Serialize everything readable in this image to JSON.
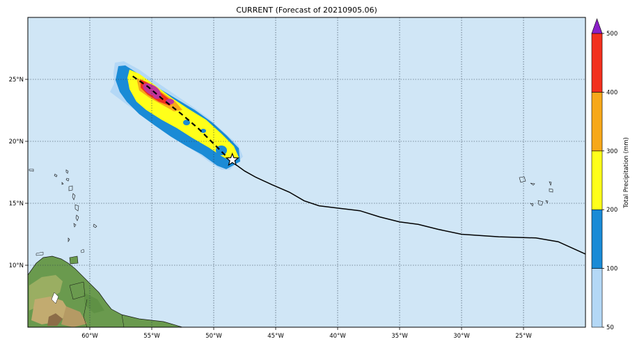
{
  "title": "CURRENT (Forecast of 20210905.06)",
  "map": {
    "lon_range": [
      -65,
      -20
    ],
    "lat_range": [
      5,
      30
    ],
    "ocean_color": "#d0e6f6",
    "lon_ticks": [
      {
        "value": -60,
        "label": "60°W"
      },
      {
        "value": -55,
        "label": "55°W"
      },
      {
        "value": -50,
        "label": "50°W"
      },
      {
        "value": -45,
        "label": "45°W"
      },
      {
        "value": -40,
        "label": "40°W"
      },
      {
        "value": -35,
        "label": "35°W"
      },
      {
        "value": -30,
        "label": "30°W"
      },
      {
        "value": -25,
        "label": "25°W"
      }
    ],
    "lat_ticks": [
      {
        "value": 10,
        "label": "10°N"
      },
      {
        "value": 15,
        "label": "15°N"
      },
      {
        "value": 20,
        "label": "20°N"
      },
      {
        "value": 25,
        "label": "25°N"
      }
    ],
    "observed_track": [
      [
        -20,
        10.9
      ],
      [
        -22.2,
        11.9
      ],
      [
        -24,
        12.2
      ],
      [
        -27,
        12.3
      ],
      [
        -30,
        12.5
      ],
      [
        -31.9,
        12.9
      ],
      [
        -33.5,
        13.3
      ],
      [
        -35,
        13.5
      ],
      [
        -36.6,
        13.9
      ],
      [
        -38.2,
        14.4
      ],
      [
        -39.9,
        14.6
      ],
      [
        -41.5,
        14.8
      ],
      [
        -42.7,
        15.2
      ],
      [
        -43.9,
        15.9
      ],
      [
        -45.3,
        16.5
      ],
      [
        -46.6,
        17.1
      ],
      [
        -47.5,
        17.6
      ],
      [
        -48.6,
        18.4
      ]
    ],
    "forecast_track": [
      [
        -48.6,
        18.4
      ],
      [
        -49.8,
        19.6
      ],
      [
        -51.2,
        21.0
      ],
      [
        -52.6,
        22.2
      ],
      [
        -54.0,
        23.3
      ],
      [
        -55.3,
        24.4
      ],
      [
        -56.6,
        25.3
      ]
    ],
    "current_position": {
      "lon": -48.5,
      "lat": 18.5
    }
  },
  "colorbar": {
    "label": "Total Precipitation (mm)",
    "levels": [
      {
        "value": 50,
        "label": "50",
        "color": "#b4d8f6"
      },
      {
        "value": 100,
        "label": "100",
        "color": "#1a8bd6"
      },
      {
        "value": 200,
        "label": "200",
        "color": "#ffff1a"
      },
      {
        "value": 300,
        "label": "300",
        "color": "#f7a81a"
      },
      {
        "value": 400,
        "label": "400",
        "color": "#f2301e"
      },
      {
        "value": 500,
        "label": "500",
        "color": "#8b20c8"
      }
    ]
  }
}
